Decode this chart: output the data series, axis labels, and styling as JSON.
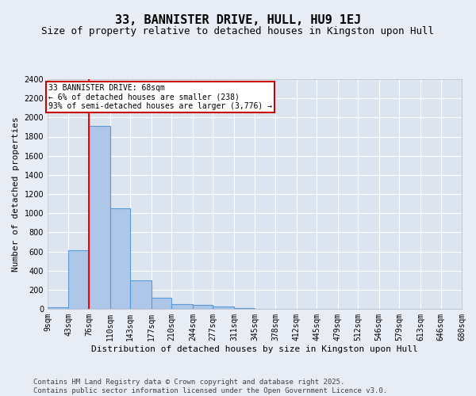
{
  "title": "33, BANNISTER DRIVE, HULL, HU9 1EJ",
  "subtitle": "Size of property relative to detached houses in Kingston upon Hull",
  "xlabel": "Distribution of detached houses by size in Kingston upon Hull",
  "ylabel": "Number of detached properties",
  "footer": "Contains HM Land Registry data © Crown copyright and database right 2025.\nContains public sector information licensed under the Open Government Licence v3.0.",
  "bins": [
    9,
    43,
    76,
    110,
    143,
    177,
    210,
    244,
    277,
    311,
    345,
    378,
    412,
    445,
    479,
    512,
    546,
    579,
    613,
    646,
    680
  ],
  "bin_labels": [
    "9sqm",
    "43sqm",
    "76sqm",
    "110sqm",
    "143sqm",
    "177sqm",
    "210sqm",
    "244sqm",
    "277sqm",
    "311sqm",
    "345sqm",
    "378sqm",
    "412sqm",
    "445sqm",
    "479sqm",
    "512sqm",
    "546sqm",
    "579sqm",
    "613sqm",
    "646sqm",
    "680sqm"
  ],
  "values": [
    15,
    615,
    1910,
    1050,
    295,
    115,
    50,
    40,
    28,
    10,
    3,
    2,
    1,
    1,
    0,
    0,
    0,
    0,
    0,
    0
  ],
  "bar_color": "#aec6e8",
  "bar_edge_color": "#5b9bd5",
  "red_line_x": 76,
  "annotation_text": "33 BANNISTER DRIVE: 68sqm\n← 6% of detached houses are smaller (238)\n93% of semi-detached houses are larger (3,776) →",
  "ylim": [
    0,
    2400
  ],
  "yticks": [
    0,
    200,
    400,
    600,
    800,
    1000,
    1200,
    1400,
    1600,
    1800,
    2000,
    2200,
    2400
  ],
  "bg_color": "#e8edf5",
  "plot_bg_color": "#dce4f0",
  "grid_color": "#ffffff",
  "annotation_box_color": "#cc0000",
  "title_fontsize": 11,
  "subtitle_fontsize": 9,
  "label_fontsize": 8,
  "tick_fontsize": 7,
  "footer_fontsize": 6.5
}
